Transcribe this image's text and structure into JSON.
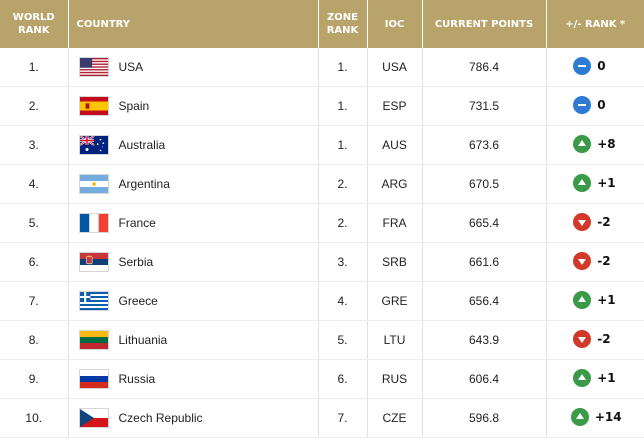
{
  "headers": {
    "world_rank": "WORLD RANK",
    "country": "COUNTRY",
    "zone_rank": "ZONE RANK",
    "ioc": "IOC",
    "current_points": "CURRENT POINTS",
    "rank_change": "+/- RANK *"
  },
  "colors": {
    "header_bg": "#b8a36b",
    "no_change": "#2f7bd4",
    "up": "#3a9a47",
    "down": "#d1392b"
  },
  "rows": [
    {
      "world_rank": "1.",
      "country": "USA",
      "flag_icon": "usa-flag-icon",
      "zone_rank": "1.",
      "ioc": "USA",
      "points": "786.4",
      "change": "0",
      "trend": "eq"
    },
    {
      "world_rank": "2.",
      "country": "Spain",
      "flag_icon": "spain-flag-icon",
      "zone_rank": "1.",
      "ioc": "ESP",
      "points": "731.5",
      "change": "0",
      "trend": "eq"
    },
    {
      "world_rank": "3.",
      "country": "Australia",
      "flag_icon": "australia-flag-icon",
      "zone_rank": "1.",
      "ioc": "AUS",
      "points": "673.6",
      "change": "+8",
      "trend": "up"
    },
    {
      "world_rank": "4.",
      "country": "Argentina",
      "flag_icon": "argentina-flag-icon",
      "zone_rank": "2.",
      "ioc": "ARG",
      "points": "670.5",
      "change": "+1",
      "trend": "up"
    },
    {
      "world_rank": "5.",
      "country": "France",
      "flag_icon": "france-flag-icon",
      "zone_rank": "2.",
      "ioc": "FRA",
      "points": "665.4",
      "change": "-2",
      "trend": "down"
    },
    {
      "world_rank": "6.",
      "country": "Serbia",
      "flag_icon": "serbia-flag-icon",
      "zone_rank": "3.",
      "ioc": "SRB",
      "points": "661.6",
      "change": "-2",
      "trend": "down"
    },
    {
      "world_rank": "7.",
      "country": "Greece",
      "flag_icon": "greece-flag-icon",
      "zone_rank": "4.",
      "ioc": "GRE",
      "points": "656.4",
      "change": "+1",
      "trend": "up"
    },
    {
      "world_rank": "8.",
      "country": "Lithuania",
      "flag_icon": "lithuania-flag-icon",
      "zone_rank": "5.",
      "ioc": "LTU",
      "points": "643.9",
      "change": "-2",
      "trend": "down"
    },
    {
      "world_rank": "9.",
      "country": "Russia",
      "flag_icon": "russia-flag-icon",
      "zone_rank": "6.",
      "ioc": "RUS",
      "points": "606.4",
      "change": "+1",
      "trend": "up"
    },
    {
      "world_rank": "10.",
      "country": "Czech Republic",
      "flag_icon": "czech-republic-flag-icon",
      "zone_rank": "7.",
      "ioc": "CZE",
      "points": "596.8",
      "change": "+14",
      "trend": "up"
    }
  ]
}
